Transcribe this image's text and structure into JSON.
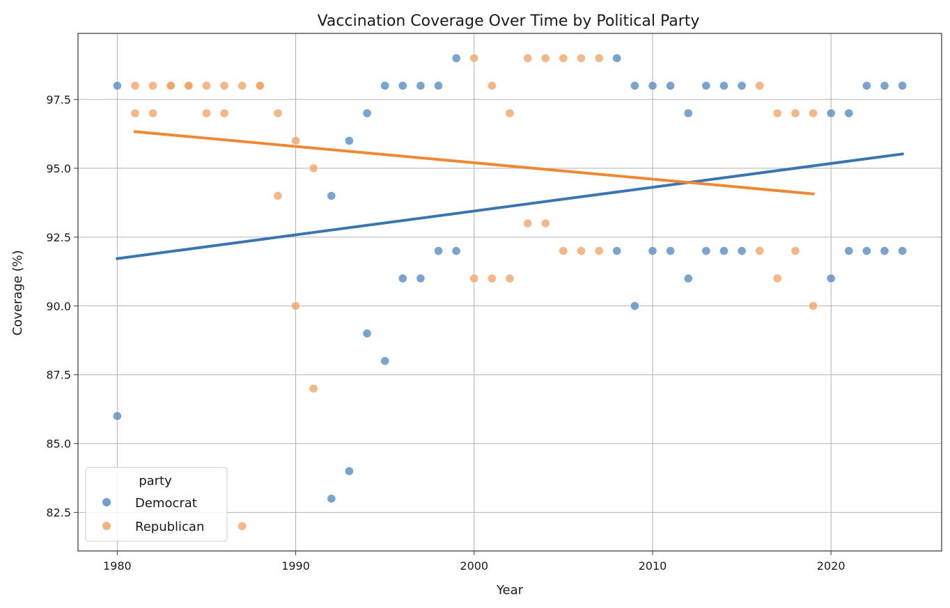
{
  "chart_data": {
    "type": "scatter",
    "title": "Vaccination Coverage Over Time by Political Party",
    "xlabel": "Year",
    "ylabel": "Coverage (%)",
    "xlim": [
      1977.8,
      2026.2
    ],
    "ylim": [
      81.1,
      99.9
    ],
    "xticks": [
      1980,
      1990,
      2000,
      2010,
      2020
    ],
    "yticks": [
      82.5,
      85.0,
      87.5,
      90.0,
      92.5,
      95.0,
      97.5
    ],
    "grid": true,
    "legend": {
      "title": "party",
      "position": "lower-left"
    },
    "series": [
      {
        "name": "Democrat",
        "color": "#4e86bf",
        "line_color": "#3a75b0",
        "points": [
          [
            1980,
            98
          ],
          [
            1980,
            86
          ],
          [
            1992,
            94
          ],
          [
            1992,
            83
          ],
          [
            1993,
            96
          ],
          [
            1993,
            84
          ],
          [
            1994,
            97
          ],
          [
            1994,
            89
          ],
          [
            1995,
            98
          ],
          [
            1995,
            88
          ],
          [
            1996,
            98
          ],
          [
            1996,
            91
          ],
          [
            1997,
            98
          ],
          [
            1997,
            91
          ],
          [
            1998,
            98
          ],
          [
            1998,
            92
          ],
          [
            1999,
            99
          ],
          [
            1999,
            92
          ],
          [
            2008,
            99
          ],
          [
            2008,
            92
          ],
          [
            2009,
            98
          ],
          [
            2009,
            90
          ],
          [
            2010,
            98
          ],
          [
            2010,
            92
          ],
          [
            2011,
            98
          ],
          [
            2011,
            92
          ],
          [
            2012,
            97
          ],
          [
            2012,
            91
          ],
          [
            2013,
            98
          ],
          [
            2013,
            92
          ],
          [
            2014,
            98
          ],
          [
            2014,
            92
          ],
          [
            2015,
            98
          ],
          [
            2015,
            92
          ],
          [
            2020,
            97
          ],
          [
            2020,
            91
          ],
          [
            2021,
            97
          ],
          [
            2021,
            92
          ],
          [
            2022,
            98
          ],
          [
            2022,
            92
          ],
          [
            2023,
            98
          ],
          [
            2023,
            92
          ],
          [
            2024,
            98
          ],
          [
            2024,
            92
          ]
        ],
        "trend": {
          "x": [
            1980,
            2024
          ],
          "y": [
            91.72,
            95.52
          ]
        }
      },
      {
        "name": "Republican",
        "color": "#f0a060",
        "line_color": "#ee8833",
        "points": [
          [
            1981,
            98
          ],
          [
            1981,
            97
          ],
          [
            1982,
            98
          ],
          [
            1982,
            97
          ],
          [
            1983,
            98
          ],
          [
            1983,
            98
          ],
          [
            1984,
            98
          ],
          [
            1984,
            98
          ],
          [
            1985,
            98
          ],
          [
            1985,
            97
          ],
          [
            1986,
            98
          ],
          [
            1986,
            97
          ],
          [
            1987,
            98
          ],
          [
            1987,
            82
          ],
          [
            1988,
            98
          ],
          [
            1988,
            98
          ],
          [
            1989,
            97
          ],
          [
            1989,
            94
          ],
          [
            1990,
            96
          ],
          [
            1990,
            90
          ],
          [
            1991,
            95
          ],
          [
            1991,
            87
          ],
          [
            2000,
            99
          ],
          [
            2000,
            91
          ],
          [
            2001,
            98
          ],
          [
            2001,
            91
          ],
          [
            2002,
            97
          ],
          [
            2002,
            91
          ],
          [
            2003,
            99
          ],
          [
            2003,
            93
          ],
          [
            2004,
            99
          ],
          [
            2004,
            93
          ],
          [
            2005,
            99
          ],
          [
            2005,
            92
          ],
          [
            2006,
            99
          ],
          [
            2006,
            92
          ],
          [
            2007,
            99
          ],
          [
            2007,
            92
          ],
          [
            2016,
            98
          ],
          [
            2016,
            92
          ],
          [
            2017,
            97
          ],
          [
            2017,
            91
          ],
          [
            2018,
            97
          ],
          [
            2018,
            92
          ],
          [
            2019,
            97
          ],
          [
            2019,
            90
          ]
        ],
        "trend": {
          "x": [
            1981,
            2019
          ],
          "y": [
            96.33,
            94.07
          ]
        }
      }
    ]
  }
}
